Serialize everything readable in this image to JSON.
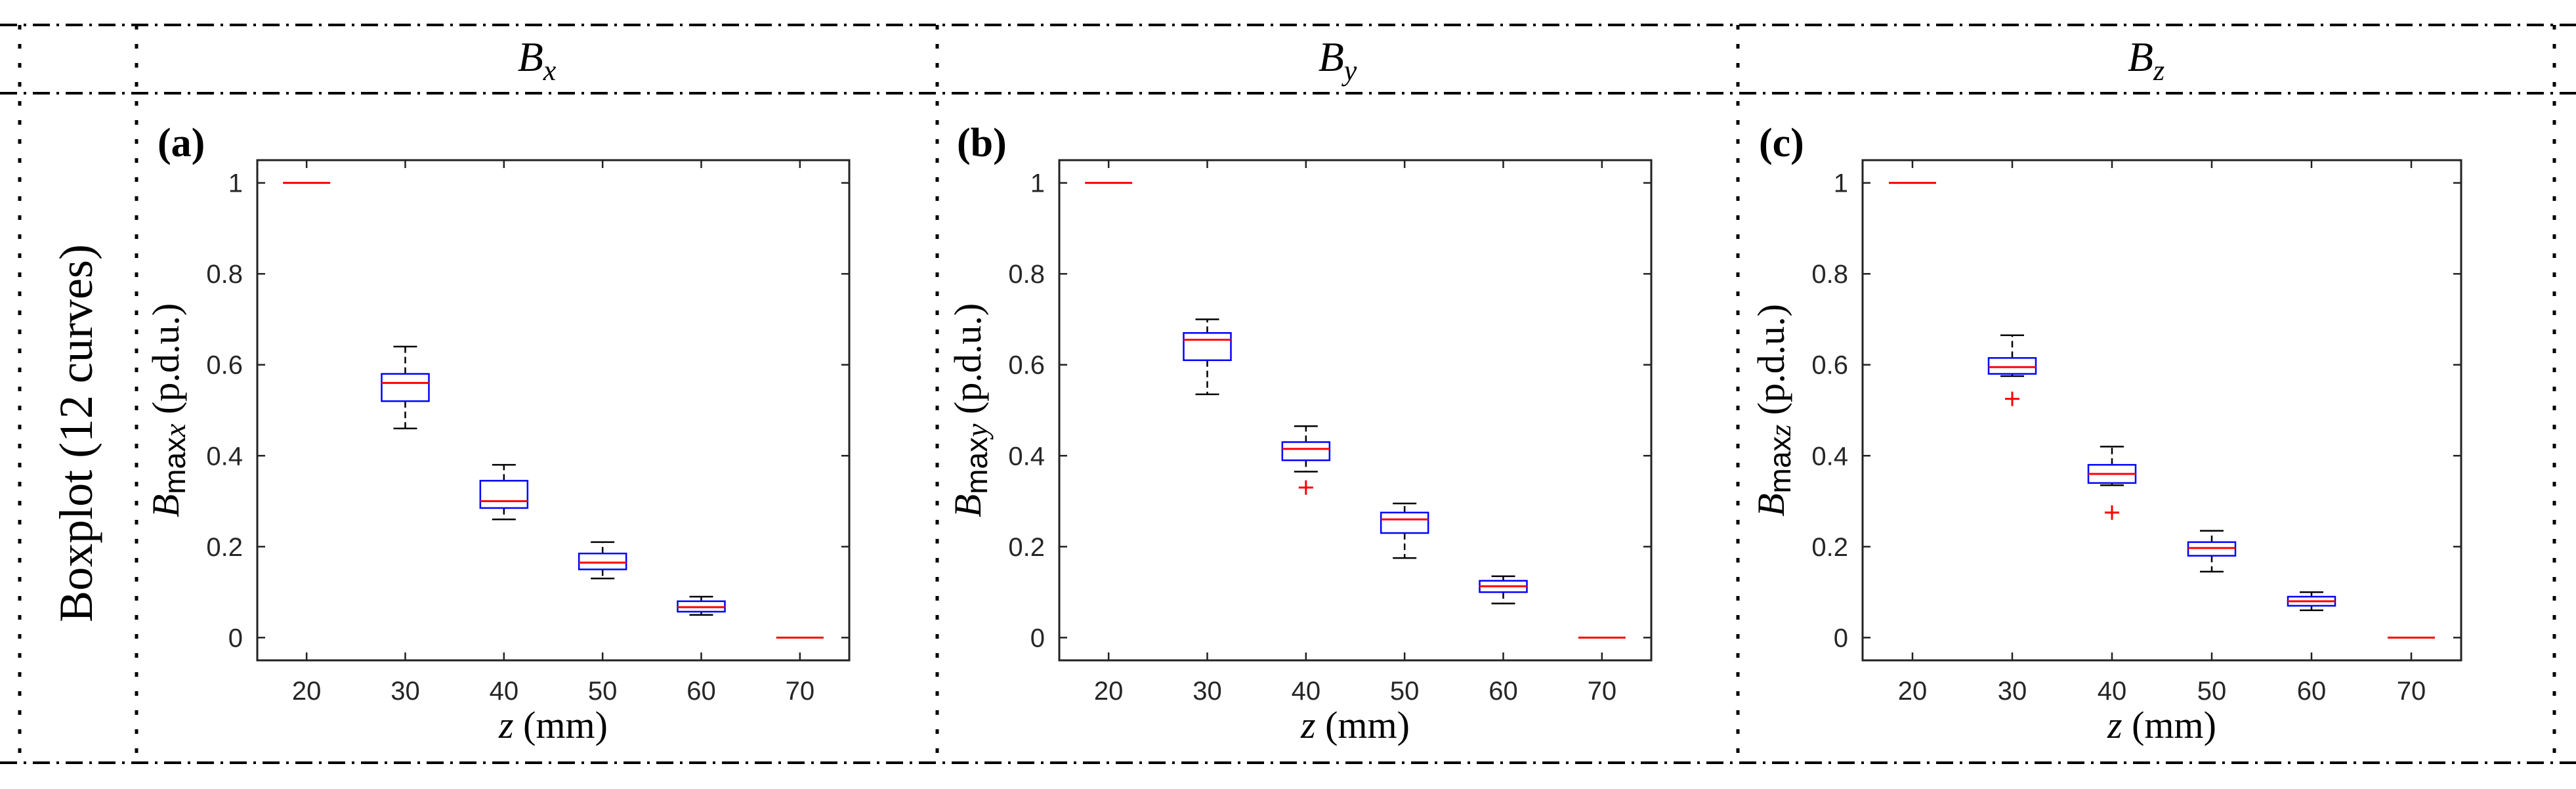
{
  "row_header": "Boxplot (12 curves)",
  "column_headers": [
    {
      "main": "B",
      "sub": "x"
    },
    {
      "main": "B",
      "sub": "y"
    },
    {
      "main": "B",
      "sub": "z"
    }
  ],
  "colors": {
    "box": "#0000ff",
    "median": "#ff0000",
    "outlier": "#ff0000",
    "whisker": "#000000",
    "axis": "#222222"
  },
  "chart_data": [
    {
      "type": "box",
      "panel_label": "(a)",
      "title": "",
      "xlabel_var": "z",
      "xlabel_unit": " (mm)",
      "ylabel_base": "B",
      "ylabel_sub": "max",
      "ylabel_var": "x",
      "ylabel_unit": " (p.d.u.)",
      "ylim": [
        -0.05,
        1.05
      ],
      "yticks": [
        "0",
        "0.2",
        "0.4",
        "0.6",
        "0.8",
        "1"
      ],
      "categories": [
        "20",
        "30",
        "40",
        "50",
        "60",
        "70"
      ],
      "boxes": [
        {
          "min": 1.0,
          "q1": 1.0,
          "median": 1.0,
          "q3": 1.0,
          "max": 1.0,
          "outliers": []
        },
        {
          "min": 0.46,
          "q1": 0.52,
          "median": 0.56,
          "q3": 0.58,
          "max": 0.64,
          "outliers": []
        },
        {
          "min": 0.26,
          "q1": 0.285,
          "median": 0.3,
          "q3": 0.345,
          "max": 0.38,
          "outliers": []
        },
        {
          "min": 0.13,
          "q1": 0.15,
          "median": 0.165,
          "q3": 0.185,
          "max": 0.21,
          "outliers": []
        },
        {
          "min": 0.05,
          "q1": 0.057,
          "median": 0.067,
          "q3": 0.08,
          "max": 0.09,
          "outliers": []
        },
        {
          "min": 0.0,
          "q1": 0.0,
          "median": 0.0,
          "q3": 0.0,
          "max": 0.0,
          "outliers": []
        }
      ]
    },
    {
      "type": "box",
      "panel_label": "(b)",
      "title": "",
      "xlabel_var": "z",
      "xlabel_unit": " (mm)",
      "ylabel_base": "B",
      "ylabel_sub": "max",
      "ylabel_var": "y",
      "ylabel_unit": " (p.d.u.)",
      "ylim": [
        -0.05,
        1.05
      ],
      "yticks": [
        "0",
        "0.2",
        "0.4",
        "0.6",
        "0.8",
        "1"
      ],
      "categories": [
        "20",
        "30",
        "40",
        "50",
        "60",
        "70"
      ],
      "boxes": [
        {
          "min": 1.0,
          "q1": 1.0,
          "median": 1.0,
          "q3": 1.0,
          "max": 1.0,
          "outliers": []
        },
        {
          "min": 0.535,
          "q1": 0.61,
          "median": 0.655,
          "q3": 0.67,
          "max": 0.7,
          "outliers": []
        },
        {
          "min": 0.365,
          "q1": 0.39,
          "median": 0.415,
          "q3": 0.43,
          "max": 0.465,
          "outliers": [
            0.33
          ]
        },
        {
          "min": 0.175,
          "q1": 0.23,
          "median": 0.26,
          "q3": 0.275,
          "max": 0.295,
          "outliers": []
        },
        {
          "min": 0.075,
          "q1": 0.1,
          "median": 0.113,
          "q3": 0.125,
          "max": 0.135,
          "outliers": []
        },
        {
          "min": 0.0,
          "q1": 0.0,
          "median": 0.0,
          "q3": 0.0,
          "max": 0.0,
          "outliers": []
        }
      ]
    },
    {
      "type": "box",
      "panel_label": "(c)",
      "title": "",
      "xlabel_var": "z",
      "xlabel_unit": " (mm)",
      "ylabel_base": "B",
      "ylabel_sub": "max",
      "ylabel_var": "z",
      "ylabel_unit": " (p.d.u.)",
      "ylim": [
        -0.05,
        1.05
      ],
      "yticks": [
        "0",
        "0.2",
        "0.4",
        "0.6",
        "0.8",
        "1"
      ],
      "categories": [
        "20",
        "30",
        "40",
        "50",
        "60",
        "70"
      ],
      "boxes": [
        {
          "min": 1.0,
          "q1": 1.0,
          "median": 1.0,
          "q3": 1.0,
          "max": 1.0,
          "outliers": []
        },
        {
          "min": 0.575,
          "q1": 0.58,
          "median": 0.595,
          "q3": 0.615,
          "max": 0.665,
          "outliers": [
            0.525
          ]
        },
        {
          "min": 0.335,
          "q1": 0.34,
          "median": 0.36,
          "q3": 0.38,
          "max": 0.42,
          "outliers": [
            0.275
          ]
        },
        {
          "min": 0.145,
          "q1": 0.18,
          "median": 0.197,
          "q3": 0.21,
          "max": 0.235,
          "outliers": []
        },
        {
          "min": 0.06,
          "q1": 0.07,
          "median": 0.08,
          "q3": 0.09,
          "max": 0.1,
          "outliers": []
        },
        {
          "min": 0.0,
          "q1": 0.0,
          "median": 0.0,
          "q3": 0.0,
          "max": 0.0,
          "outliers": []
        }
      ]
    }
  ]
}
